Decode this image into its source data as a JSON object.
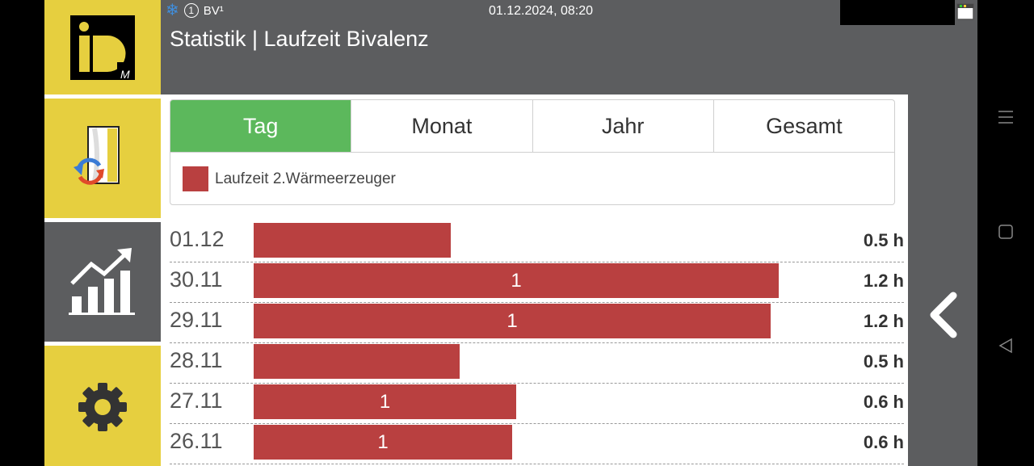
{
  "header": {
    "indicator_number": "1",
    "mode_label": "BV¹",
    "datetime": "01.12.2024, 08:20",
    "title": "Statistik | Laufzeit Bivalenz"
  },
  "sidebar": {
    "logo_text": "iD",
    "logo_sub": "M"
  },
  "tabs": [
    {
      "label": "Tag",
      "active": true
    },
    {
      "label": "Monat",
      "active": false
    },
    {
      "label": "Jahr",
      "active": false
    },
    {
      "label": "Gesamt",
      "active": false
    }
  ],
  "legend": {
    "label": "Laufzeit 2.Wärmeerzeuger",
    "color": "#b94040"
  },
  "chart_data": {
    "type": "bar",
    "orientation": "horizontal",
    "unit": "h",
    "xlim": [
      0,
      1.26
    ],
    "rows": [
      {
        "date": "01.12",
        "value_label": "0.5 h",
        "bar_text": "",
        "value": 0.45
      },
      {
        "date": "30.11",
        "value_label": "1.2 h",
        "bar_text": "1",
        "value": 1.2
      },
      {
        "date": "29.11",
        "value_label": "1.2 h",
        "bar_text": "1",
        "value": 1.18
      },
      {
        "date": "28.11",
        "value_label": "0.5 h",
        "bar_text": "",
        "value": 0.47
      },
      {
        "date": "27.11",
        "value_label": "0.6 h",
        "bar_text": "1",
        "value": 0.6
      },
      {
        "date": "26.11",
        "value_label": "0.6 h",
        "bar_text": "1",
        "value": 0.59
      }
    ]
  },
  "colors": {
    "accent_yellow": "#e6cf3f",
    "header_gray": "#5c5d5f",
    "tab_active": "#5cb85c",
    "bar": "#b94040"
  }
}
